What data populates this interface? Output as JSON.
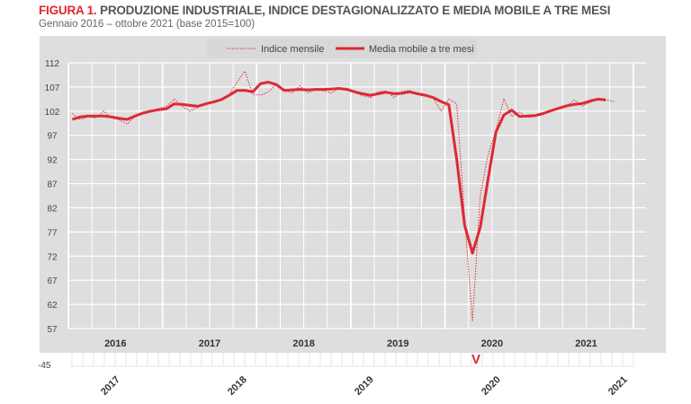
{
  "figure_label": "FIGURA 1.",
  "title": "PRODUZIONE INDUSTRIALE, INDICE DESTAGIONALIZZATO E MEDIA MOBILE A TRE MESI",
  "subtitle": "Gennaio 2016 – ottobre 2021 (base 2015=100)",
  "colors": {
    "series": "#dc2a34",
    "background": "#dedede",
    "grid": "#ffffff",
    "text": "#444444"
  },
  "chart_data": {
    "type": "line",
    "title": "PRODUZIONE INDUSTRIALE, INDICE DESTAGIONALIZZATO E MEDIA MOBILE A TRE MESI",
    "xlabel": "",
    "ylabel": "",
    "ylim": [
      57,
      112
    ],
    "yticks": [
      "112",
      "107",
      "102",
      "97",
      "92",
      "87",
      "82",
      "77",
      "72",
      "67",
      "62",
      "57"
    ],
    "year_labels": [
      "2016",
      "2017",
      "2018",
      "2019",
      "2020",
      "2021"
    ],
    "start": "2016-01",
    "grid": true,
    "legend_position": "top-center",
    "series": [
      {
        "name": "Indice mensile",
        "style": "dotted",
        "values": [
          101.5,
          100.3,
          100.8,
          100.6,
          102.0,
          100.6,
          100.2,
          99.3,
          101.0,
          101.8,
          102.0,
          102.5,
          103.0,
          104.5,
          103.0,
          102.0,
          102.8,
          103.5,
          103.8,
          104.5,
          105.5,
          108.0,
          110.3,
          105.5,
          105.3,
          106.0,
          107.5,
          106.5,
          105.8,
          107.2,
          105.8,
          106.5,
          106.2,
          105.8,
          106.7,
          106.8,
          105.8,
          105.2,
          104.8,
          106.0,
          106.2,
          104.8,
          106.1,
          106.3,
          105.5,
          105.2,
          104.7,
          102.0,
          104.5,
          103.5,
          80.0,
          58.5,
          84.6,
          93.0,
          98.0,
          104.6,
          100.9,
          101.8,
          100.7,
          100.9,
          101.5,
          102.0,
          102.5,
          103.0,
          104.3,
          103.1,
          103.8,
          104.6,
          104.4,
          104.0
        ]
      },
      {
        "name": "Media mobile a tre mesi",
        "style": "solid",
        "values": [
          100.3,
          100.8,
          101.0,
          101.0,
          101.0,
          100.8,
          100.5,
          100.3,
          101.0,
          101.6,
          102.0,
          102.3,
          102.5,
          103.5,
          103.4,
          103.2,
          103.0,
          103.5,
          103.9,
          104.4,
          105.3,
          106.3,
          106.3,
          106.0,
          107.7,
          108.0,
          107.5,
          106.3,
          106.4,
          106.5,
          106.4,
          106.5,
          106.5,
          106.6,
          106.7,
          106.5,
          106.0,
          105.6,
          105.3,
          105.6,
          105.9,
          105.6,
          105.7,
          106.0,
          105.6,
          105.3,
          104.8,
          104.0,
          103.3,
          92.0,
          78.4,
          72.6,
          78.0,
          88.0,
          97.7,
          101.2,
          102.2,
          100.9,
          101.0,
          101.1,
          101.5,
          102.1,
          102.6,
          103.1,
          103.4,
          103.6,
          104.1,
          104.5,
          104.3
        ]
      }
    ],
    "secondary_axis": {
      "label": "-45",
      "rotated_year_labels": [
        "2017",
        "2018",
        "2019",
        "2020",
        "2021"
      ],
      "marker": "V"
    }
  }
}
